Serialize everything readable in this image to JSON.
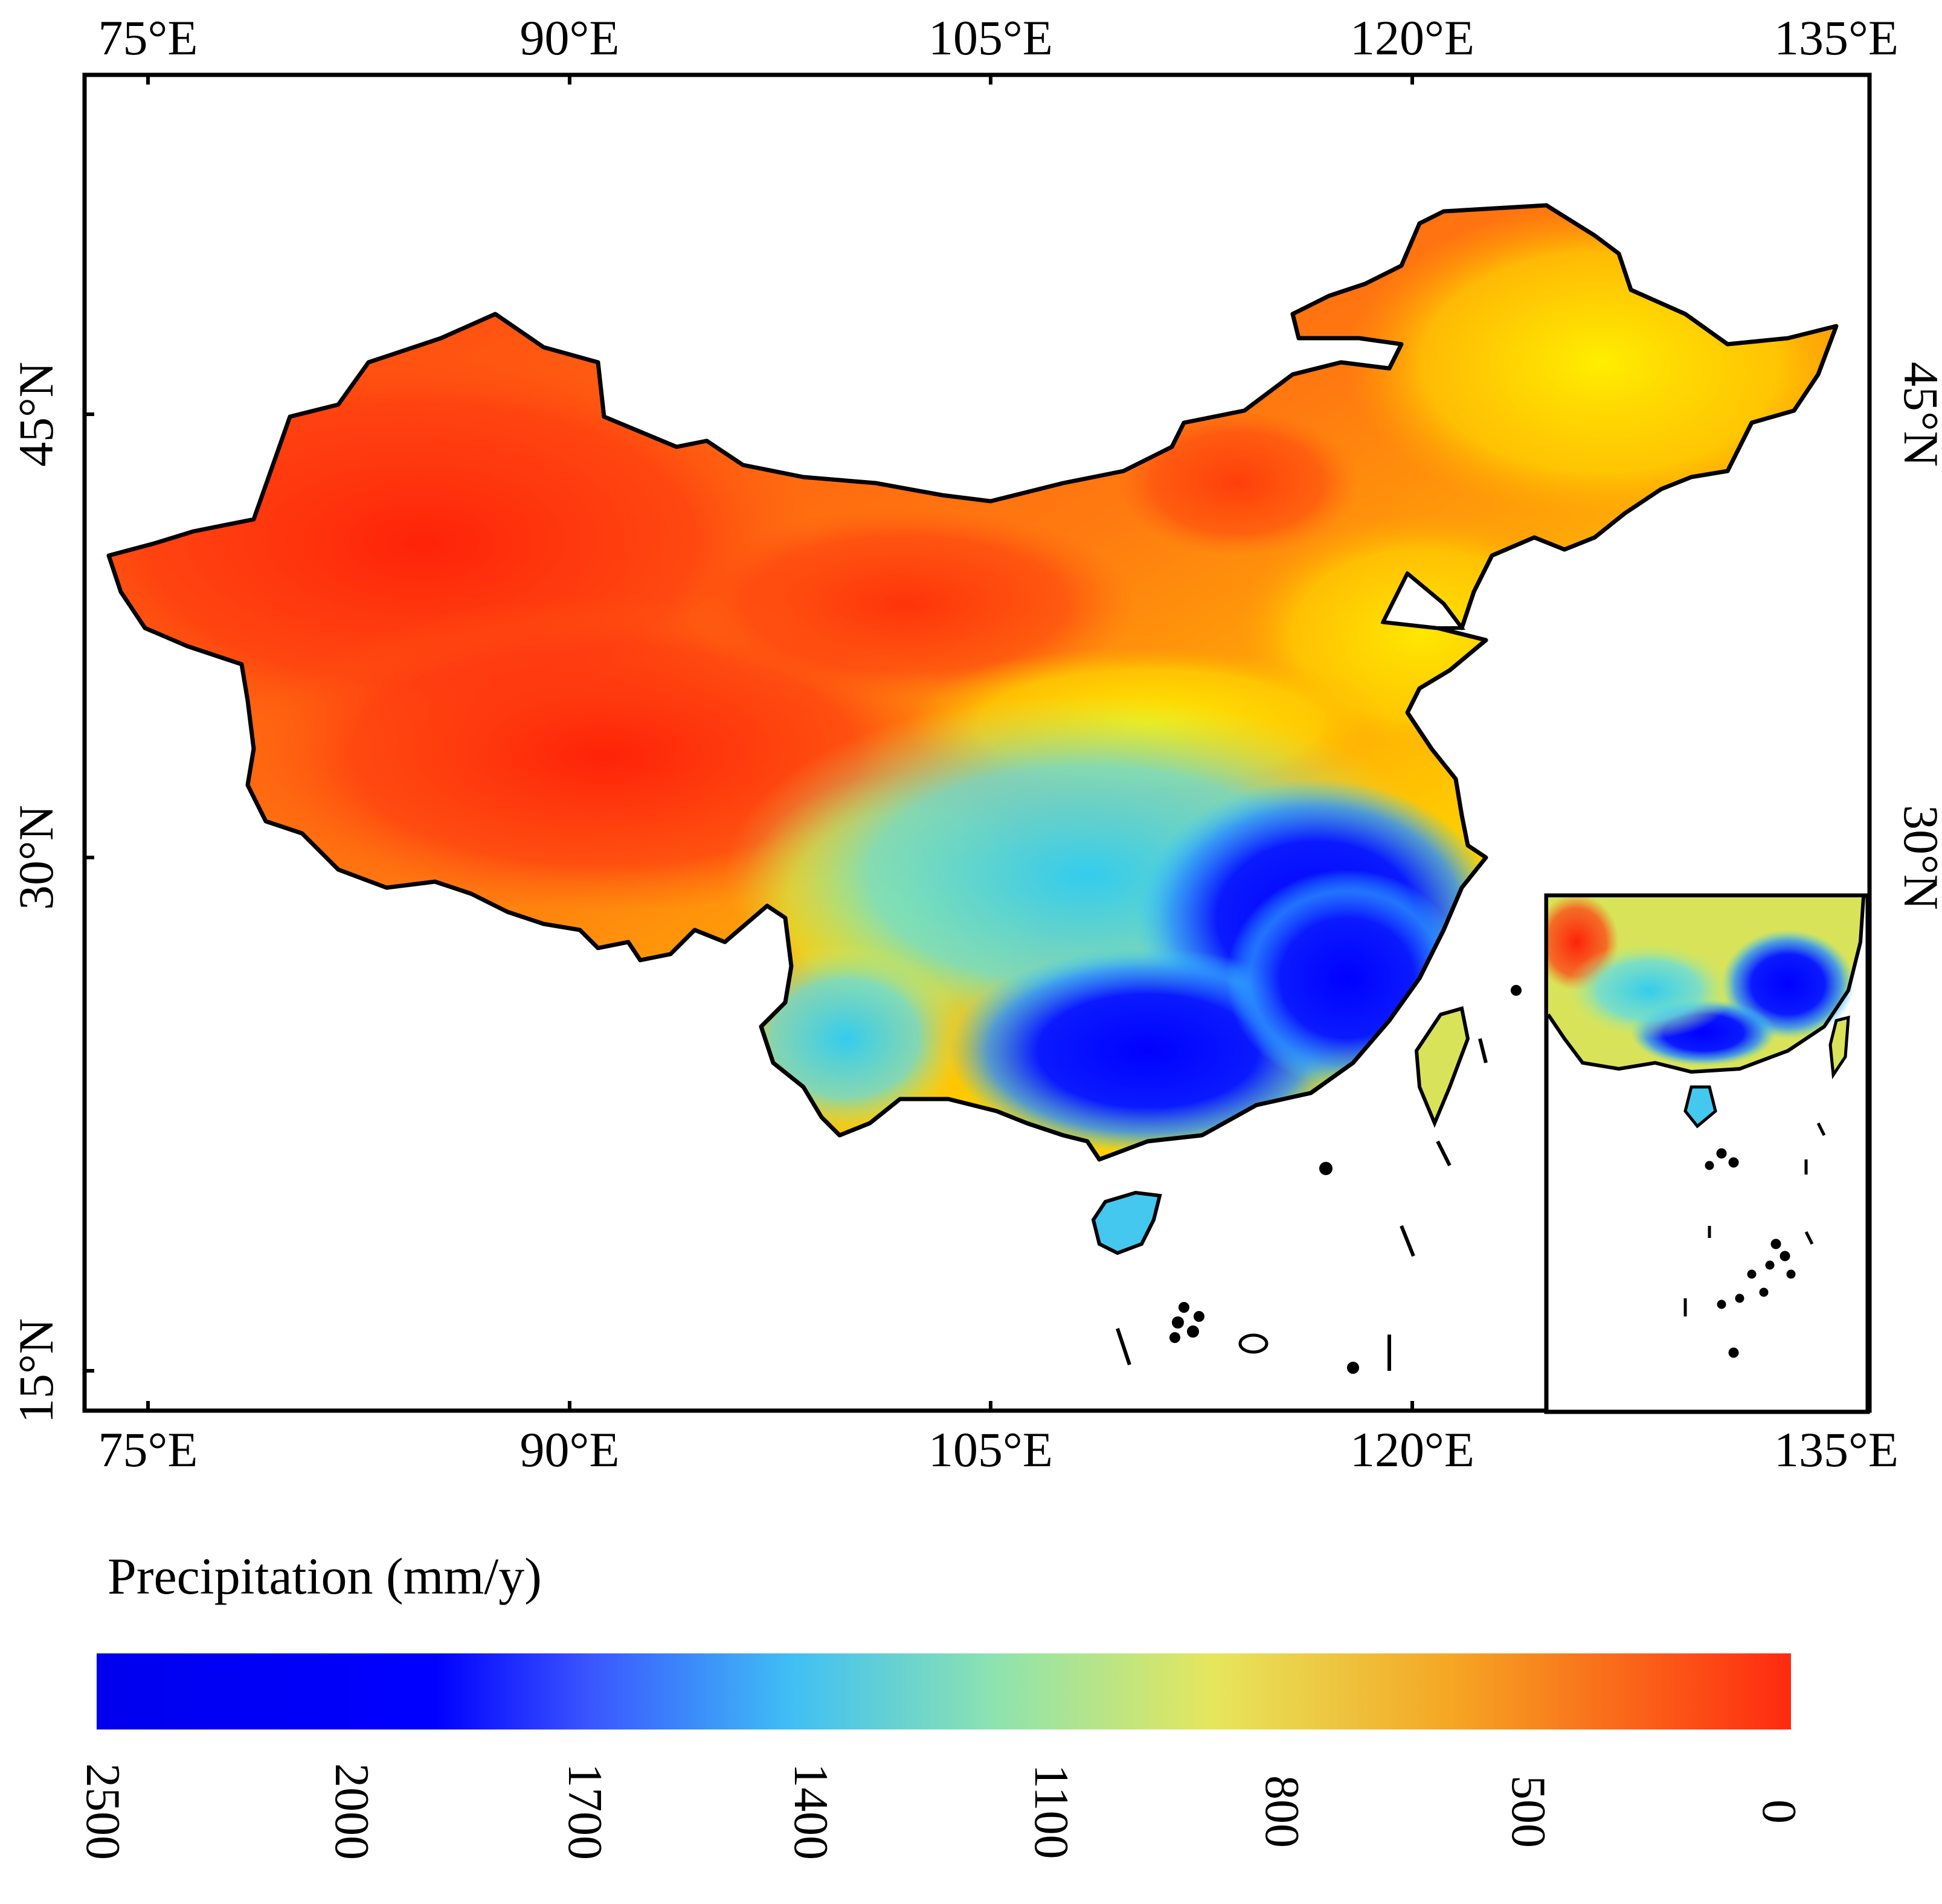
{
  "map": {
    "title": "Precipitation (mm/y)",
    "lon_labels": [
      "75°E",
      "90°E",
      "105°E",
      "120°E",
      "135°E"
    ],
    "lat_labels": [
      "45°N",
      "30°N",
      "15°N"
    ]
  },
  "legend": {
    "title": "Precipitation (mm/y)",
    "tick_labels": [
      "2500",
      "2000",
      "1700",
      "1400",
      "1100",
      "800",
      "500",
      "0"
    ],
    "colors": [
      "#0000ee",
      "#0000ff",
      "#4a7cff",
      "#3fc4f2",
      "#9ae6a6",
      "#e8e860",
      "#f5a623",
      "#ff2a10"
    ]
  },
  "colors": {
    "wet": "#0000ff",
    "moist": "#33ccff",
    "moderate": "#ffff00",
    "dry": "#ff9900",
    "arid": "#ff2a10"
  }
}
